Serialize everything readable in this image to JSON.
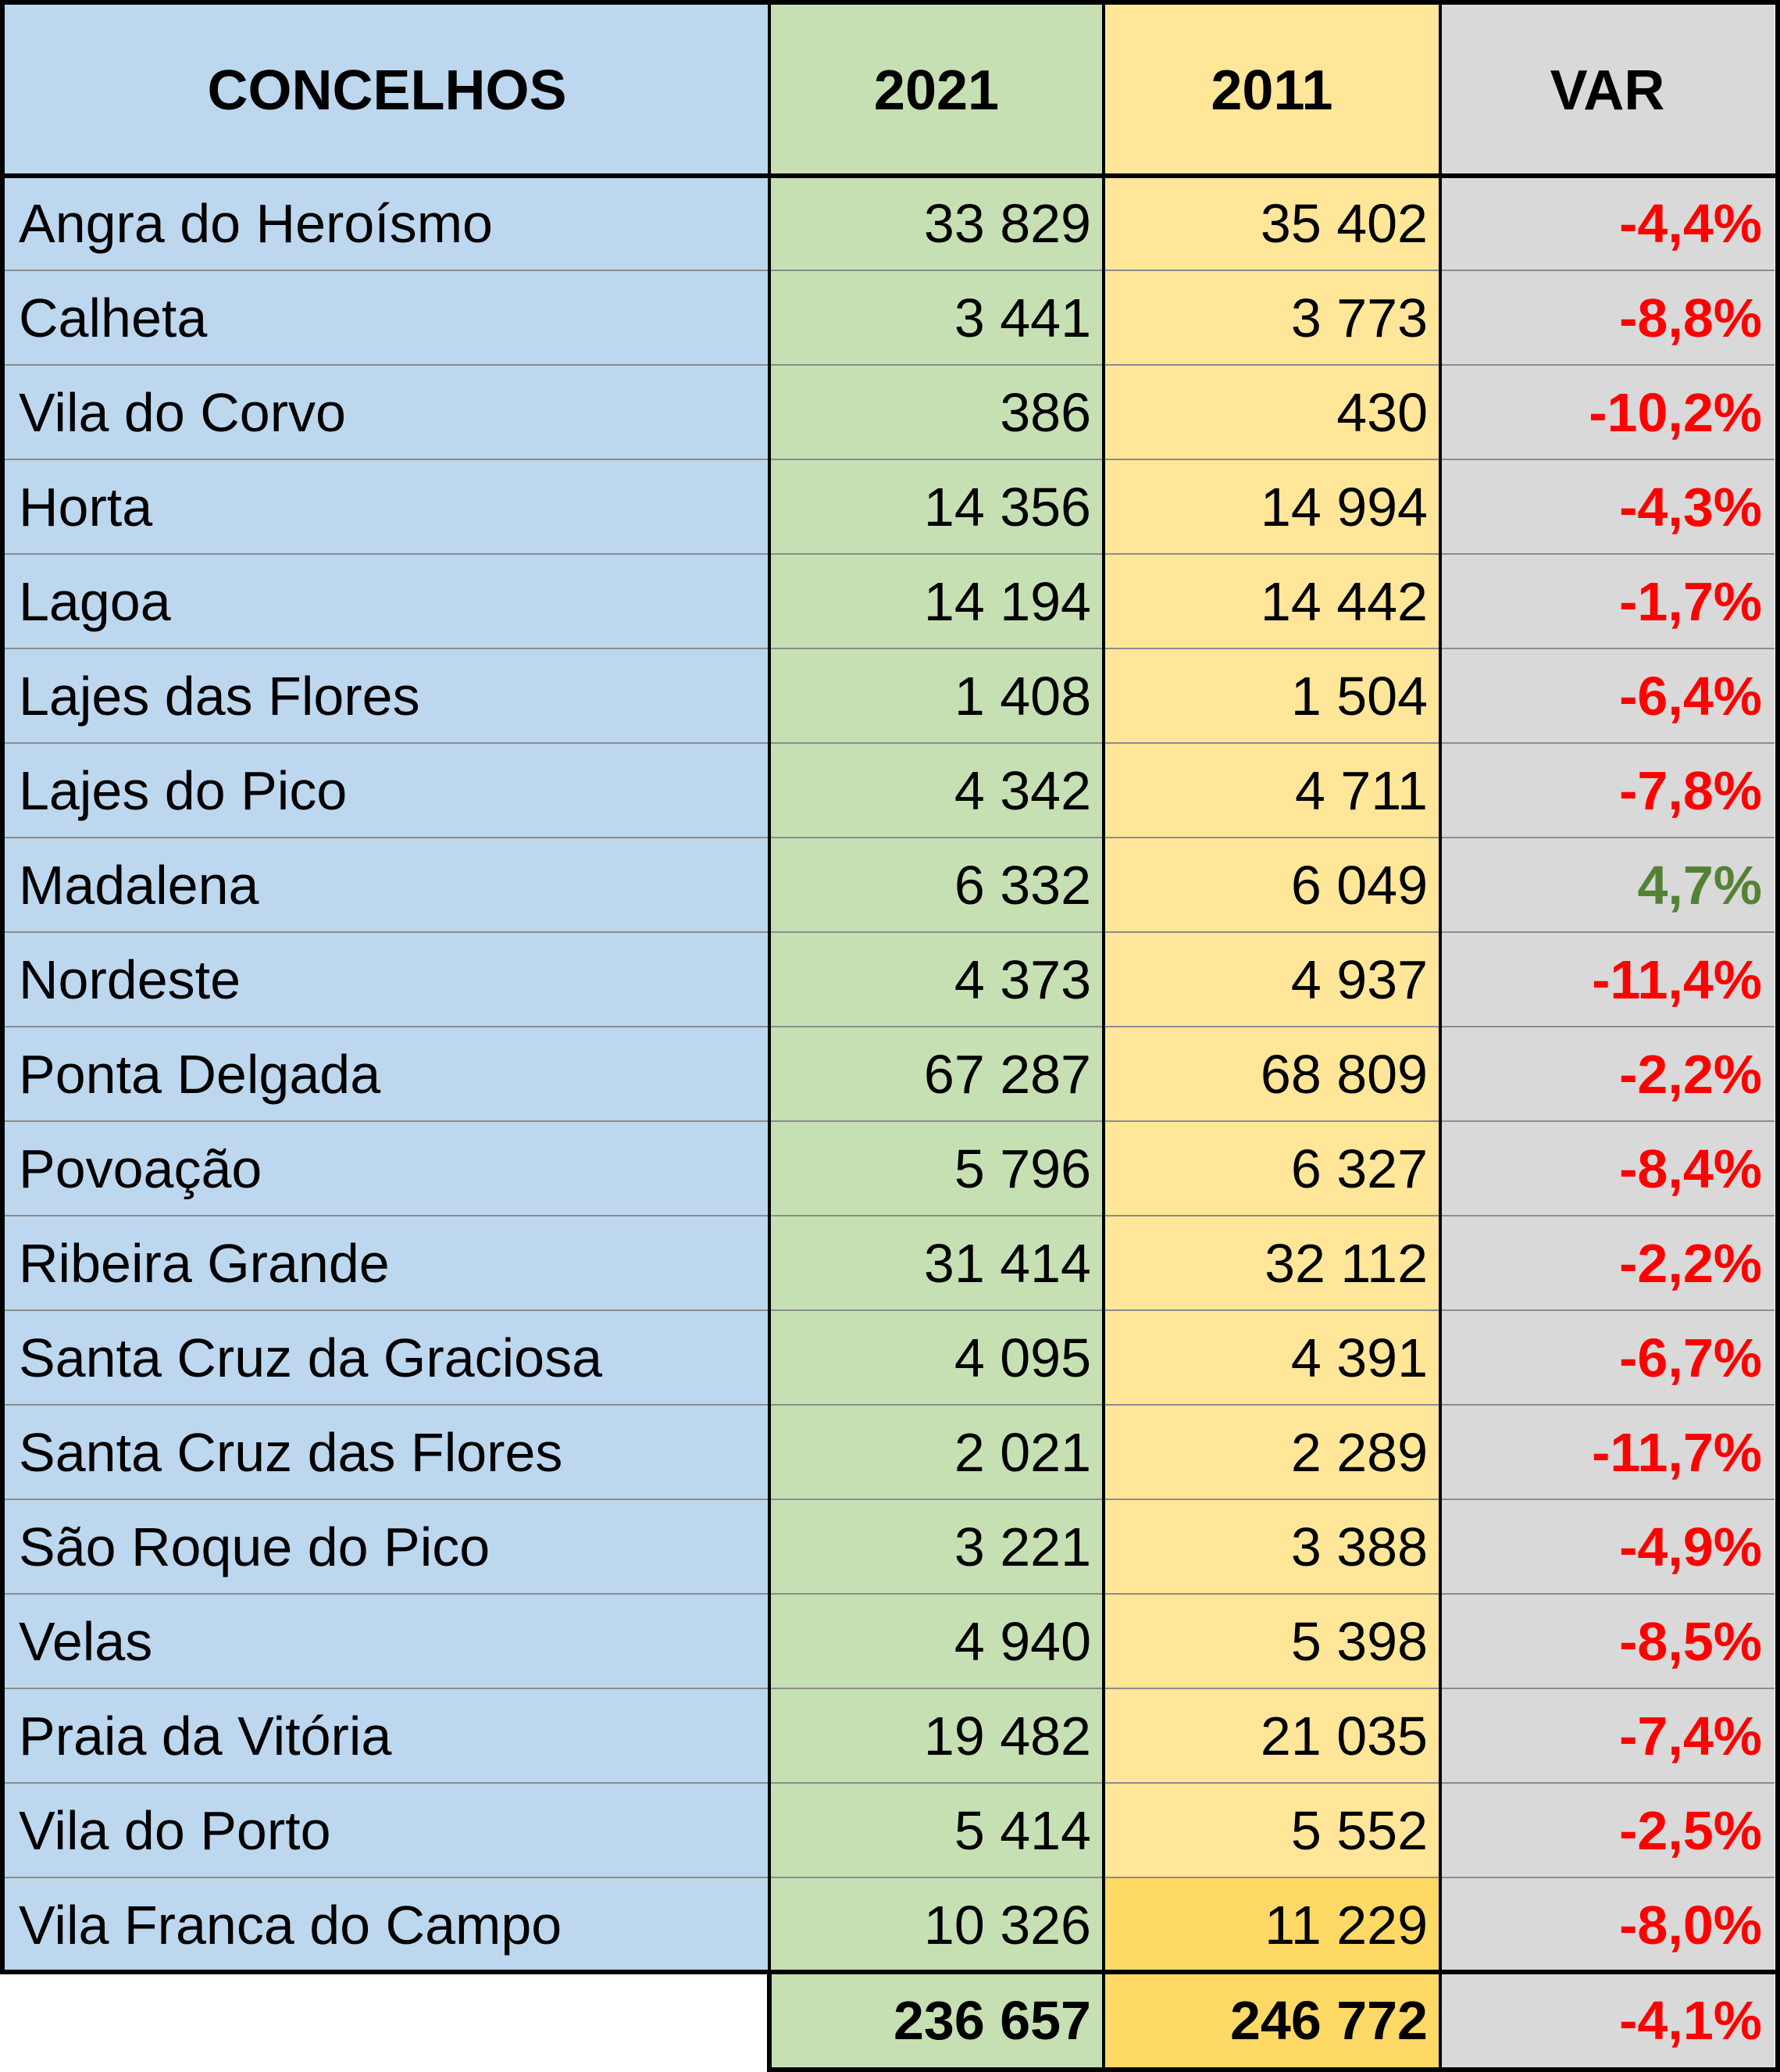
{
  "table": {
    "header": [
      "CONCELHOS",
      "2021",
      "2011",
      "VAR"
    ],
    "rows": [
      [
        "Angra do Heroísmo",
        "33 829",
        "35 402",
        "-4,4%"
      ],
      [
        "Calheta",
        "3 441",
        "3 773",
        "-8,8%"
      ],
      [
        "Vila do Corvo",
        "386",
        "430",
        "-10,2%"
      ],
      [
        "Horta",
        "14 356",
        "14 994",
        "-4,3%"
      ],
      [
        "Lagoa",
        "14 194",
        "14 442",
        "-1,7%"
      ],
      [
        "Lajes das Flores",
        "1 408",
        "1 504",
        "-6,4%"
      ],
      [
        "Lajes do Pico",
        "4 342",
        "4 711",
        "-7,8%"
      ],
      [
        "Madalena",
        "6 332",
        "6 049",
        "4,7%"
      ],
      [
        "Nordeste",
        "4 373",
        "4 937",
        "-11,4%"
      ],
      [
        "Ponta Delgada",
        "67 287",
        "68 809",
        "-2,2%"
      ],
      [
        "Povoação",
        "5 796",
        "6 327",
        "-8,4%"
      ],
      [
        "Ribeira Grande",
        "31 414",
        "32 112",
        "-2,2%"
      ],
      [
        "Santa Cruz da Graciosa",
        "4 095",
        "4 391",
        "-6,7%"
      ],
      [
        "Santa Cruz das Flores",
        "2 021",
        "2 289",
        "-11,7%"
      ],
      [
        "São Roque do Pico",
        "3 221",
        "3 388",
        "-4,9%"
      ],
      [
        "Velas",
        "4 940",
        "5 398",
        "-8,5%"
      ],
      [
        "Praia da Vitória",
        "19 482",
        "21 035",
        "-7,4%"
      ],
      [
        "Vila do Porto",
        "5 414",
        "5 552",
        "-2,5%"
      ],
      [
        "Vila Franca do Campo",
        "10 326",
        "11 229",
        "-8,0%"
      ]
    ],
    "total": [
      "236 657",
      "246 772",
      "-4,1%"
    ]
  }
}
